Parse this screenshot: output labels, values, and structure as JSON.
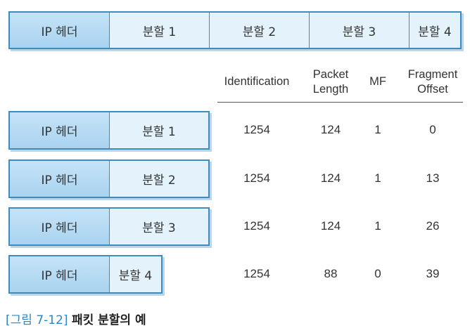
{
  "top_packet": {
    "header": "IP 헤더",
    "fragments": [
      "분할 1",
      "분할 2",
      "분할 3",
      "분할 4"
    ]
  },
  "table": {
    "columns": [
      {
        "key": "id",
        "label": "Identification"
      },
      {
        "key": "len",
        "label": "Packet\nLength"
      },
      {
        "key": "mf",
        "label": "MF"
      },
      {
        "key": "off",
        "label": "Fragment\nOffset"
      }
    ],
    "rows": [
      {
        "header": "IP 헤더",
        "fragment": "분할 1",
        "id": "1254",
        "len": "124",
        "mf": "1",
        "off": "0"
      },
      {
        "header": "IP 헤더",
        "fragment": "분할 2",
        "id": "1254",
        "len": "124",
        "mf": "1",
        "off": "13"
      },
      {
        "header": "IP 헤더",
        "fragment": "분할 3",
        "id": "1254",
        "len": "124",
        "mf": "1",
        "off": "26"
      },
      {
        "header": "IP 헤더",
        "fragment": "분할 4",
        "id": "1254",
        "len": "88",
        "mf": "0",
        "off": "39"
      }
    ]
  },
  "caption": {
    "label": "[그림 7-12]",
    "title": "패킷 분할의 예"
  },
  "colors": {
    "border": "#3d8bbf",
    "header_fill": "#b5daf3",
    "fragment_fill": "#e3f2fb",
    "caption_label": "#2f86c4"
  }
}
